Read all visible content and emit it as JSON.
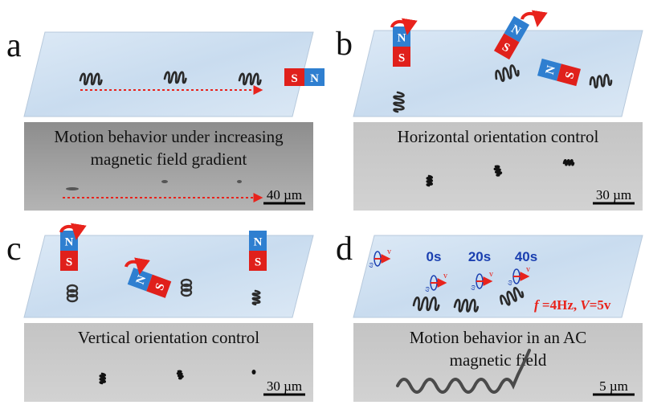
{
  "panels": [
    {
      "label": "a",
      "caption": [
        "Motion behavior under increasing",
        "magnetic field gradient"
      ],
      "scale_bar": "40 µm",
      "magnets": [
        {
          "s": "S",
          "n": "N"
        }
      ]
    },
    {
      "label": "b",
      "caption": [
        "Horizontal orientation control"
      ],
      "scale_bar": "30 µm",
      "magnets": [
        {
          "s": "S",
          "n": "N"
        },
        {
          "s": "S",
          "n": "N"
        },
        {
          "s": "S",
          "n": "N"
        }
      ]
    },
    {
      "label": "c",
      "caption": [
        "Vertical orientation control"
      ],
      "scale_bar": "30 µm",
      "magnets": [
        {
          "s": "S",
          "n": "N"
        },
        {
          "s": "S",
          "n": "N"
        },
        {
          "s": "S",
          "n": "N"
        }
      ]
    },
    {
      "label": "d",
      "caption": [
        "Motion behavior in an AC",
        "magnetic field"
      ],
      "scale_bar": "5 µm",
      "times": [
        "0s",
        "20s",
        "40s"
      ],
      "params": [
        "f",
        " =4Hz, ",
        "V",
        "=5v"
      ],
      "motion_labels": [
        {
          "v": "v",
          "w": "ω"
        },
        {
          "v": "v",
          "w": "ω"
        },
        {
          "v": "v",
          "w": "ω"
        },
        {
          "v": "v",
          "w": "ω"
        }
      ]
    }
  ]
}
